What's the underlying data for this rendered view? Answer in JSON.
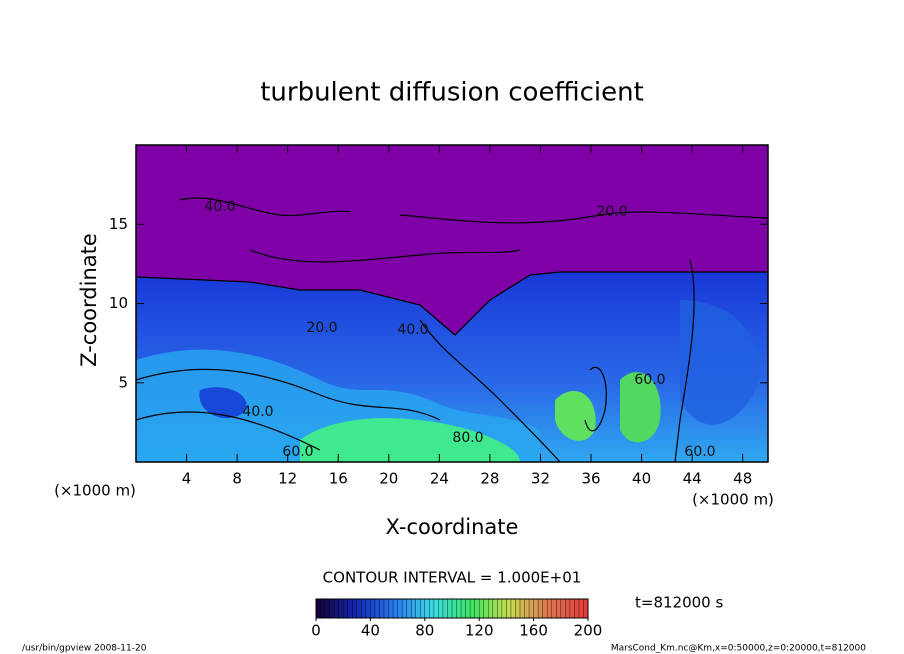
{
  "chart_data": {
    "type": "contour",
    "title": "turbulent diffusion coefficient",
    "xlabel": "X-coordinate",
    "ylabel": "Z-coordinate",
    "xunit": "(×1000 m)",
    "yunit": "(×1000 m)",
    "xlim": [
      0,
      50
    ],
    "xticks": [
      4,
      8,
      12,
      16,
      20,
      24,
      28,
      32,
      36,
      40,
      44,
      48
    ],
    "ylim": [
      0,
      20
    ],
    "yticks": [
      5,
      10,
      15
    ],
    "contour_interval": "CONTOUR INTERVAL = 1.000E+01",
    "contour_labels": [
      "40.0",
      "20.0",
      "20.0",
      "40.0",
      "40.0",
      "60.0",
      "80.0",
      "60.0",
      "60.0"
    ],
    "time": "t=812000 s",
    "colorbar": {
      "lim": [
        0,
        200
      ],
      "ticks": [
        0,
        40,
        80,
        120,
        160,
        200
      ]
    },
    "footer_left": "/usr/bin/gpview  2008-11-20",
    "footer_right": "MarsCond_Km.nc@Km,x=0:50000,z=0:20000,t=812000"
  }
}
